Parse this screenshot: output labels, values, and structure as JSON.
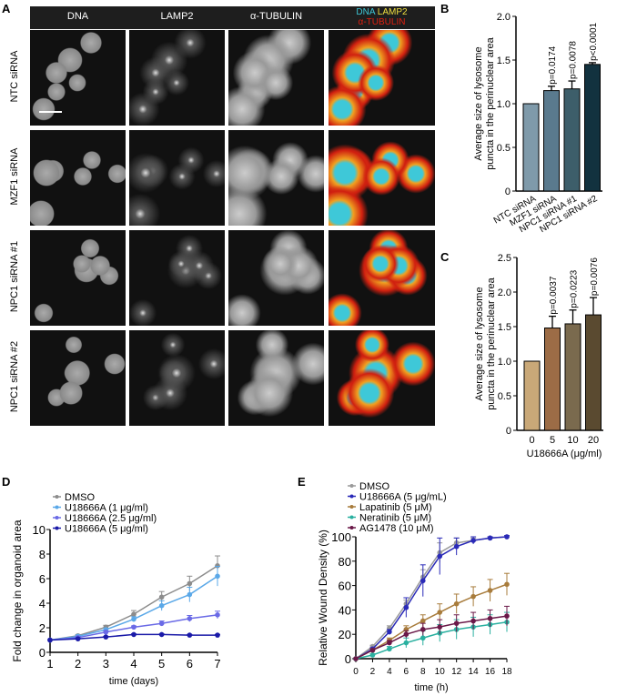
{
  "panel_labels": [
    "A",
    "B",
    "C",
    "D",
    "E"
  ],
  "panel_a": {
    "columns": [
      "DNA",
      "LAMP2",
      "α-TUBULIN"
    ],
    "merge_label": {
      "dna": "DNA",
      "lamp2": "LAMP2",
      "tubulin": "α-TUBULIN"
    },
    "rows": [
      "NTC siRNA",
      "MZF1 siRNA",
      "NPC1  siRNA #1",
      "NPC1 siRNA  #2"
    ],
    "colors": {
      "dna": "#3ec8d8",
      "lamp2": "#f0e040",
      "tubulin": "#e02010"
    }
  },
  "chart_data": [
    {
      "panel": "B",
      "type": "bar",
      "categories": [
        "NTC siRNA",
        "MZF1 siRNA",
        "NPC1 siRNA #1",
        "NPC1 siRNA #2"
      ],
      "values": [
        1.0,
        1.15,
        1.17,
        1.45
      ],
      "errors": [
        0,
        0.05,
        0.09,
        0.02
      ],
      "annotations": [
        "",
        "p=0.0174",
        "p=0.0078",
        "p<0.0001"
      ],
      "ylabel": [
        "Average size of lysosome",
        "puncta in the perinuclear area"
      ],
      "xlabel": "",
      "ylim": [
        0,
        2.0
      ],
      "yticks": [
        "0",
        "0.5",
        "1.0",
        "1.5",
        "2.0"
      ],
      "colors": [
        "#7f9aaa",
        "#5a7a8e",
        "#3d5e6a",
        "#12323f"
      ]
    },
    {
      "panel": "C",
      "type": "bar",
      "categories": [
        "0",
        "5",
        "10",
        "20"
      ],
      "values": [
        1.0,
        1.48,
        1.54,
        1.67
      ],
      "errors": [
        0,
        0.17,
        0.2,
        0.25
      ],
      "annotations": [
        "",
        "p=0.0037",
        "p=0.0223",
        "p=0.0076"
      ],
      "ylabel": [
        "Average size of lysosome",
        "puncta in the perinuclear area"
      ],
      "xlabel": "U18666A (μg/ml)",
      "ylim": [
        0,
        2.5
      ],
      "yticks": [
        "0",
        "0.5",
        "1.0",
        "1.5",
        "2.0",
        "2.5"
      ],
      "colors": [
        "#c9a878",
        "#9c6c46",
        "#7a6a4e",
        "#5a4a30"
      ]
    },
    {
      "panel": "D",
      "type": "line",
      "x": [
        1,
        2,
        3,
        4,
        5,
        6,
        7
      ],
      "xlabel": "time (days)",
      "ylabel": "Fold change in organoid area",
      "xlim": [
        1,
        7
      ],
      "ylim": [
        0,
        10
      ],
      "xticks": [
        "1",
        "2",
        "3",
        "4",
        "5",
        "6",
        "7"
      ],
      "yticks": [
        "0",
        "2",
        "4",
        "6",
        "8",
        "10"
      ],
      "legend": "top-left",
      "series": [
        {
          "name": "DMSO",
          "color": "#8c8c8c",
          "values": [
            1,
            1.35,
            2.05,
            3.1,
            4.5,
            5.6,
            7.05
          ],
          "errors": [
            0,
            0.1,
            0.15,
            0.3,
            0.45,
            0.6,
            0.8
          ]
        },
        {
          "name": "U18666A (1 μg/ml)",
          "color": "#5aa8e8",
          "values": [
            1,
            1.3,
            1.85,
            2.7,
            3.8,
            4.7,
            6.2
          ],
          "errors": [
            0,
            0.1,
            0.1,
            0.2,
            0.4,
            0.6,
            0.8
          ]
        },
        {
          "name": "U18666A (2.5 μg/ml)",
          "color": "#6a6ae6",
          "values": [
            1,
            1.2,
            1.65,
            2.05,
            2.35,
            2.75,
            3.05
          ],
          "errors": [
            0,
            0.1,
            0.1,
            0.1,
            0.2,
            0.25,
            0.3
          ]
        },
        {
          "name": "U18666A (5 μg/ml)",
          "color": "#1a1aa8",
          "values": [
            1,
            1.1,
            1.25,
            1.45,
            1.45,
            1.4,
            1.4
          ],
          "errors": [
            0,
            0.05,
            0.05,
            0.05,
            0.05,
            0.05,
            0.05
          ]
        }
      ]
    },
    {
      "panel": "E",
      "type": "line",
      "x": [
        0,
        2,
        4,
        6,
        8,
        10,
        12,
        14,
        16,
        18
      ],
      "xlabel": "time (h)",
      "ylabel": "Relative Wound Density (%)",
      "xlim": [
        0,
        18
      ],
      "ylim": [
        0,
        100
      ],
      "xticks": [
        "0",
        "2",
        "4",
        "6",
        "8",
        "10",
        "12",
        "14",
        "16",
        "18"
      ],
      "yticks": [
        "0",
        "20",
        "40",
        "60",
        "80",
        "100"
      ],
      "legend": "top-left",
      "series": [
        {
          "name": "DMSO",
          "color": "#9a9a9a",
          "values": [
            0,
            10,
            25,
            45,
            67,
            87,
            95,
            97,
            99,
            100
          ],
          "errors": [
            0,
            1,
            2,
            3,
            6,
            8,
            4,
            2,
            1,
            1
          ]
        },
        {
          "name": "U18666A (5 μg/mL)",
          "color": "#2a2ab8",
          "values": [
            0,
            8,
            22,
            42,
            64,
            84,
            92,
            97,
            99,
            100
          ],
          "errors": [
            0,
            1,
            2,
            8,
            13,
            15,
            7,
            3,
            1,
            1
          ]
        },
        {
          "name": "Lapatinib (5 μM)",
          "color": "#a87c3c",
          "values": [
            0,
            7,
            15,
            24,
            31,
            38,
            45,
            51,
            56,
            61
          ],
          "errors": [
            0,
            1,
            2,
            3,
            5,
            7,
            8,
            8,
            9,
            9
          ]
        },
        {
          "name": "Neratinib (5 μM)",
          "color": "#2ab0a0",
          "values": [
            0,
            3,
            8,
            13,
            17,
            21,
            24,
            26,
            28,
            30
          ],
          "errors": [
            0,
            1,
            2,
            4,
            6,
            7,
            8,
            8,
            8,
            8
          ]
        },
        {
          "name": "AG1478 (10 μM)",
          "color": "#6a1848",
          "values": [
            0,
            7,
            13,
            20,
            24,
            26,
            29,
            31,
            33,
            35
          ],
          "errors": [
            0,
            1,
            2,
            3,
            5,
            6,
            7,
            7,
            7,
            8
          ]
        }
      ]
    }
  ]
}
